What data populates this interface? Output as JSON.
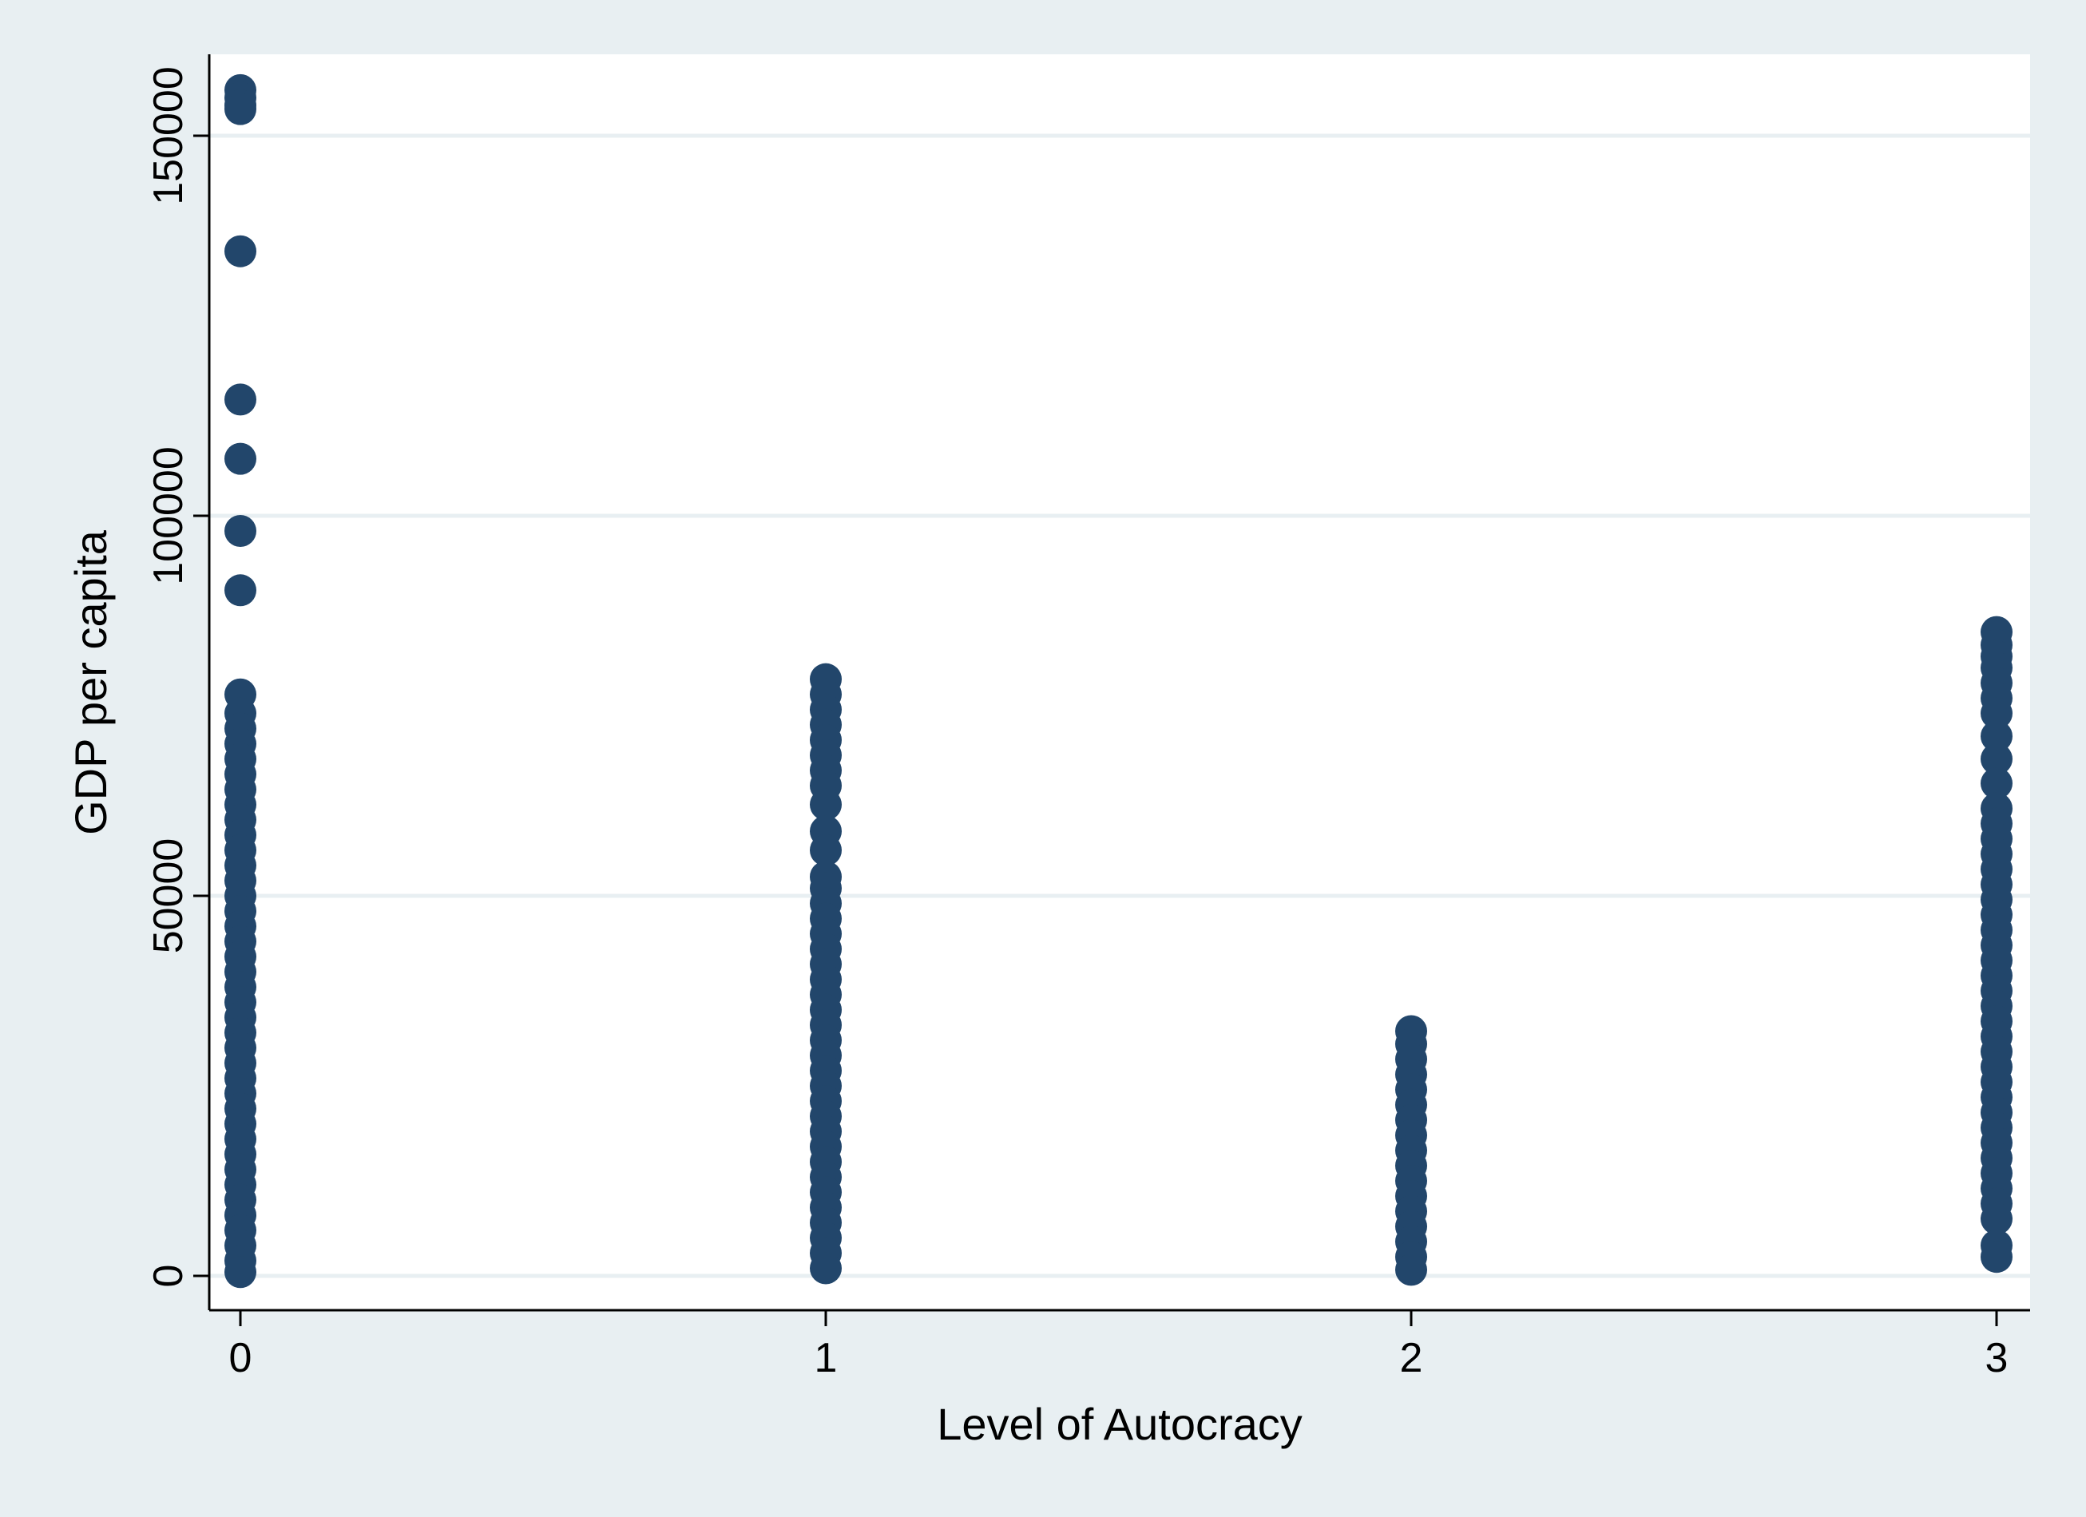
{
  "chart_data": {
    "type": "scatter",
    "title": "",
    "xlabel": "Level of Autocracy",
    "ylabel": "GDP per capita",
    "xlim": [
      -0.05,
      3.05
    ],
    "ylim": [
      -4500,
      160000
    ],
    "x_ticks": [
      0,
      1,
      2,
      3
    ],
    "x_tick_labels": [
      "0",
      "1",
      "2",
      "3"
    ],
    "y_ticks": [
      0,
      50000,
      100000,
      150000
    ],
    "y_tick_labels": [
      "0",
      "50000",
      "100000",
      "150000"
    ],
    "grid": "horizontal",
    "legend": "none",
    "series": [
      {
        "marker_color": "#22466b",
        "points": [
          {
            "x": 0,
            "y": 156000
          },
          {
            "x": 0,
            "y": 155000
          },
          {
            "x": 0,
            "y": 154000
          },
          {
            "x": 0,
            "y": 153500
          },
          {
            "x": 0,
            "y": 134800
          },
          {
            "x": 0,
            "y": 115300
          },
          {
            "x": 0,
            "y": 107500
          },
          {
            "x": 0,
            "y": 98000
          },
          {
            "x": 0,
            "y": 90200
          },
          {
            "x": 0,
            "y": 76500
          },
          {
            "x": 0,
            "y": 74000
          },
          {
            "x": 0,
            "y": 72000
          },
          {
            "x": 0,
            "y": 70000
          },
          {
            "x": 0,
            "y": 68000
          },
          {
            "x": 0,
            "y": 66000
          },
          {
            "x": 0,
            "y": 64000
          },
          {
            "x": 0,
            "y": 62000
          },
          {
            "x": 0,
            "y": 60000
          },
          {
            "x": 0,
            "y": 58000
          },
          {
            "x": 0,
            "y": 56000
          },
          {
            "x": 0,
            "y": 54000
          },
          {
            "x": 0,
            "y": 52000
          },
          {
            "x": 0,
            "y": 50000
          },
          {
            "x": 0,
            "y": 48000
          },
          {
            "x": 0,
            "y": 46000
          },
          {
            "x": 0,
            "y": 44000
          },
          {
            "x": 0,
            "y": 42000
          },
          {
            "x": 0,
            "y": 40000
          },
          {
            "x": 0,
            "y": 38000
          },
          {
            "x": 0,
            "y": 36000
          },
          {
            "x": 0,
            "y": 34000
          },
          {
            "x": 0,
            "y": 32000
          },
          {
            "x": 0,
            "y": 30000
          },
          {
            "x": 0,
            "y": 28000
          },
          {
            "x": 0,
            "y": 26000
          },
          {
            "x": 0,
            "y": 24000
          },
          {
            "x": 0,
            "y": 22000
          },
          {
            "x": 0,
            "y": 20000
          },
          {
            "x": 0,
            "y": 18000
          },
          {
            "x": 0,
            "y": 16000
          },
          {
            "x": 0,
            "y": 14000
          },
          {
            "x": 0,
            "y": 12000
          },
          {
            "x": 0,
            "y": 10000
          },
          {
            "x": 0,
            "y": 8000
          },
          {
            "x": 0,
            "y": 6000
          },
          {
            "x": 0,
            "y": 4000
          },
          {
            "x": 0,
            "y": 2000
          },
          {
            "x": 0,
            "y": 500
          },
          {
            "x": 1,
            "y": 78500
          },
          {
            "x": 1,
            "y": 76500
          },
          {
            "x": 1,
            "y": 74500
          },
          {
            "x": 1,
            "y": 72500
          },
          {
            "x": 1,
            "y": 70500
          },
          {
            "x": 1,
            "y": 68500
          },
          {
            "x": 1,
            "y": 66500
          },
          {
            "x": 1,
            "y": 64500
          },
          {
            "x": 1,
            "y": 62000
          },
          {
            "x": 1,
            "y": 58500
          },
          {
            "x": 1,
            "y": 56000
          },
          {
            "x": 1,
            "y": 52500
          },
          {
            "x": 1,
            "y": 51000
          },
          {
            "x": 1,
            "y": 49000
          },
          {
            "x": 1,
            "y": 47000
          },
          {
            "x": 1,
            "y": 45000
          },
          {
            "x": 1,
            "y": 43000
          },
          {
            "x": 1,
            "y": 41000
          },
          {
            "x": 1,
            "y": 39000
          },
          {
            "x": 1,
            "y": 37000
          },
          {
            "x": 1,
            "y": 35000
          },
          {
            "x": 1,
            "y": 33000
          },
          {
            "x": 1,
            "y": 31000
          },
          {
            "x": 1,
            "y": 29000
          },
          {
            "x": 1,
            "y": 27000
          },
          {
            "x": 1,
            "y": 25000
          },
          {
            "x": 1,
            "y": 23000
          },
          {
            "x": 1,
            "y": 21000
          },
          {
            "x": 1,
            "y": 19000
          },
          {
            "x": 1,
            "y": 17000
          },
          {
            "x": 1,
            "y": 15000
          },
          {
            "x": 1,
            "y": 13000
          },
          {
            "x": 1,
            "y": 11000
          },
          {
            "x": 1,
            "y": 9000
          },
          {
            "x": 1,
            "y": 7000
          },
          {
            "x": 1,
            "y": 5000
          },
          {
            "x": 1,
            "y": 3000
          },
          {
            "x": 1,
            "y": 1000
          },
          {
            "x": 2,
            "y": 32200
          },
          {
            "x": 2,
            "y": 30500
          },
          {
            "x": 2,
            "y": 28500
          },
          {
            "x": 2,
            "y": 26500
          },
          {
            "x": 2,
            "y": 24500
          },
          {
            "x": 2,
            "y": 22500
          },
          {
            "x": 2,
            "y": 20500
          },
          {
            "x": 2,
            "y": 18500
          },
          {
            "x": 2,
            "y": 16500
          },
          {
            "x": 2,
            "y": 14500
          },
          {
            "x": 2,
            "y": 12500
          },
          {
            "x": 2,
            "y": 10500
          },
          {
            "x": 2,
            "y": 8500
          },
          {
            "x": 2,
            "y": 6500
          },
          {
            "x": 2,
            "y": 4500
          },
          {
            "x": 2,
            "y": 2500
          },
          {
            "x": 2,
            "y": 800
          },
          {
            "x": 3,
            "y": 84700
          },
          {
            "x": 3,
            "y": 83000
          },
          {
            "x": 3,
            "y": 81500
          },
          {
            "x": 3,
            "y": 80000
          },
          {
            "x": 3,
            "y": 78000
          },
          {
            "x": 3,
            "y": 76000
          },
          {
            "x": 3,
            "y": 74000
          },
          {
            "x": 3,
            "y": 71000
          },
          {
            "x": 3,
            "y": 68000
          },
          {
            "x": 3,
            "y": 64800
          },
          {
            "x": 3,
            "y": 61500
          },
          {
            "x": 3,
            "y": 59500
          },
          {
            "x": 3,
            "y": 57500
          },
          {
            "x": 3,
            "y": 55500
          },
          {
            "x": 3,
            "y": 53500
          },
          {
            "x": 3,
            "y": 51500
          },
          {
            "x": 3,
            "y": 49500
          },
          {
            "x": 3,
            "y": 47500
          },
          {
            "x": 3,
            "y": 45500
          },
          {
            "x": 3,
            "y": 43500
          },
          {
            "x": 3,
            "y": 41500
          },
          {
            "x": 3,
            "y": 39500
          },
          {
            "x": 3,
            "y": 37500
          },
          {
            "x": 3,
            "y": 35500
          },
          {
            "x": 3,
            "y": 33500
          },
          {
            "x": 3,
            "y": 31500
          },
          {
            "x": 3,
            "y": 29500
          },
          {
            "x": 3,
            "y": 27500
          },
          {
            "x": 3,
            "y": 25500
          },
          {
            "x": 3,
            "y": 23500
          },
          {
            "x": 3,
            "y": 21500
          },
          {
            "x": 3,
            "y": 19500
          },
          {
            "x": 3,
            "y": 17500
          },
          {
            "x": 3,
            "y": 15500
          },
          {
            "x": 3,
            "y": 13500
          },
          {
            "x": 3,
            "y": 11500
          },
          {
            "x": 3,
            "y": 9500
          },
          {
            "x": 3,
            "y": 7500
          },
          {
            "x": 3,
            "y": 4000
          },
          {
            "x": 3,
            "y": 2500
          }
        ]
      }
    ],
    "colors": {
      "outer_background": "#e8eff2",
      "plot_background": "#ffffff",
      "gridline": "#e8eff2",
      "marker": "#22466b",
      "axis": "#000000"
    }
  }
}
